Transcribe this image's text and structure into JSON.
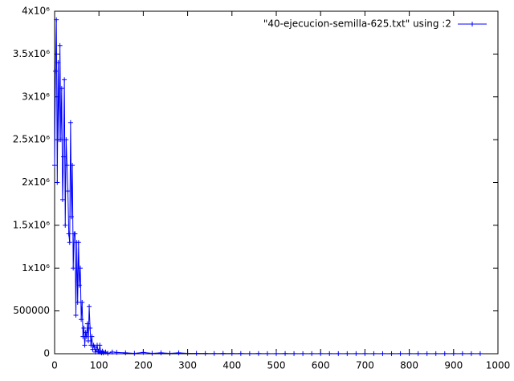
{
  "chart_data": {
    "type": "linepoints",
    "series": [
      {
        "name": "\"40-ejecucion-semilla-625.txt\" using :2",
        "color": "#0000ff",
        "x": [
          0,
          2,
          4,
          6,
          8,
          10,
          12,
          14,
          16,
          18,
          20,
          22,
          24,
          26,
          28,
          30,
          32,
          34,
          36,
          38,
          40,
          42,
          44,
          46,
          48,
          50,
          52,
          54,
          56,
          58,
          60,
          62,
          64,
          66,
          68,
          70,
          72,
          74,
          76,
          78,
          80,
          82,
          84,
          86,
          88,
          90,
          92,
          94,
          96,
          98,
          100,
          102,
          104,
          106,
          108,
          110,
          115,
          120,
          130,
          140,
          160,
          180,
          200,
          220,
          240,
          260,
          280,
          300,
          320,
          340,
          360,
          380,
          400,
          420,
          440,
          460,
          480,
          500,
          520,
          540,
          560,
          580,
          600,
          620,
          640,
          660,
          680,
          700,
          720,
          740,
          760,
          780,
          800,
          820,
          840,
          860,
          880,
          900,
          920,
          940,
          960
        ],
        "values": [
          2200000,
          3300000,
          3900000,
          2000000,
          3400000,
          2500000,
          3600000,
          2500000,
          3100000,
          1800000,
          2300000,
          3200000,
          1500000,
          2500000,
          2200000,
          1900000,
          1400000,
          1300000,
          2700000,
          1600000,
          2200000,
          1000000,
          1400000,
          1400000,
          450000,
          1300000,
          600000,
          1300000,
          800000,
          1000000,
          400000,
          600000,
          200000,
          300000,
          100000,
          250000,
          200000,
          350000,
          150000,
          550000,
          300000,
          100000,
          200000,
          50000,
          100000,
          80000,
          20000,
          50000,
          100000,
          30000,
          20000,
          100000,
          20000,
          10000,
          30000,
          10000,
          20000,
          5000,
          20000,
          15000,
          10000,
          5000,
          15000,
          5000,
          10000,
          5000,
          10000,
          5000,
          5000,
          3000,
          2000,
          3000,
          2000,
          2000,
          1000,
          2000,
          1000,
          1000,
          2000,
          1000,
          1000,
          1000,
          1000,
          1000,
          1000,
          1000,
          1000,
          1000,
          1000,
          1000,
          1000,
          1000,
          1000,
          1000,
          1000,
          1000,
          1000,
          1000,
          1000,
          1000,
          1000
        ]
      }
    ],
    "xlim": [
      0,
      1000
    ],
    "xticks": [
      0,
      100,
      200,
      300,
      400,
      500,
      600,
      700,
      800,
      900,
      1000
    ],
    "ylim": [
      0,
      4000000
    ],
    "yticks": [
      0,
      500000,
      {
        "value": 1000000,
        "label": "1x10⁶"
      },
      {
        "value": 1500000,
        "label": "1.5x10⁶"
      },
      {
        "value": 2000000,
        "label": "2x10⁶"
      },
      {
        "value": 2500000,
        "label": "2.5x10⁶"
      },
      {
        "value": 3000000,
        "label": "3x10⁶"
      },
      {
        "value": 3500000,
        "label": "3.5x10⁶"
      },
      {
        "value": 4000000,
        "label": "4x10⁶"
      }
    ],
    "legend": "top-right"
  }
}
